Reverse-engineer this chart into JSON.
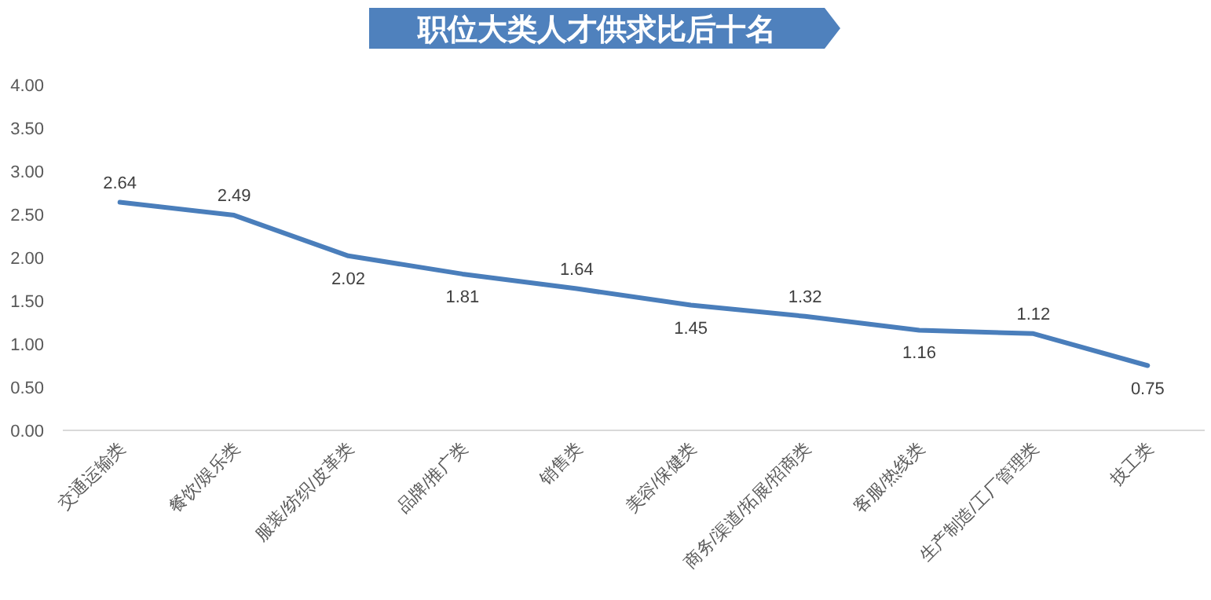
{
  "chart_data": {
    "type": "line",
    "title": "职位大类人才供求比后十名",
    "categories": [
      "交通运输类",
      "餐饮/娱乐类",
      "服装/纺织/皮革类",
      "品牌/推广类",
      "销售类",
      "美容/保健类",
      "商务/渠道/拓展/招商类",
      "客服/热线类",
      "生产制造/工厂管理类",
      "技工类"
    ],
    "series": [
      {
        "color": "#4a7ebb",
        "values": [
          2.64,
          2.49,
          2.02,
          1.81,
          1.64,
          1.45,
          1.32,
          1.16,
          1.12,
          0.75
        ]
      }
    ],
    "ylim": [
      0,
      4
    ],
    "yticks": [
      {
        "value": 0,
        "label": "0.00"
      },
      {
        "value": 0.5,
        "label": "0.50"
      },
      {
        "value": 1,
        "label": "1.00"
      },
      {
        "value": 1.5,
        "label": "1.50"
      },
      {
        "value": 2,
        "label": "2.00"
      },
      {
        "value": 2.5,
        "label": "2.50"
      },
      {
        "value": 3,
        "label": "3.00"
      },
      {
        "value": 3.5,
        "label": "3.50"
      },
      {
        "value": 4,
        "label": "4.00"
      }
    ],
    "data_labels": true,
    "marker": "none",
    "line_style": "solid",
    "grid": false
  }
}
